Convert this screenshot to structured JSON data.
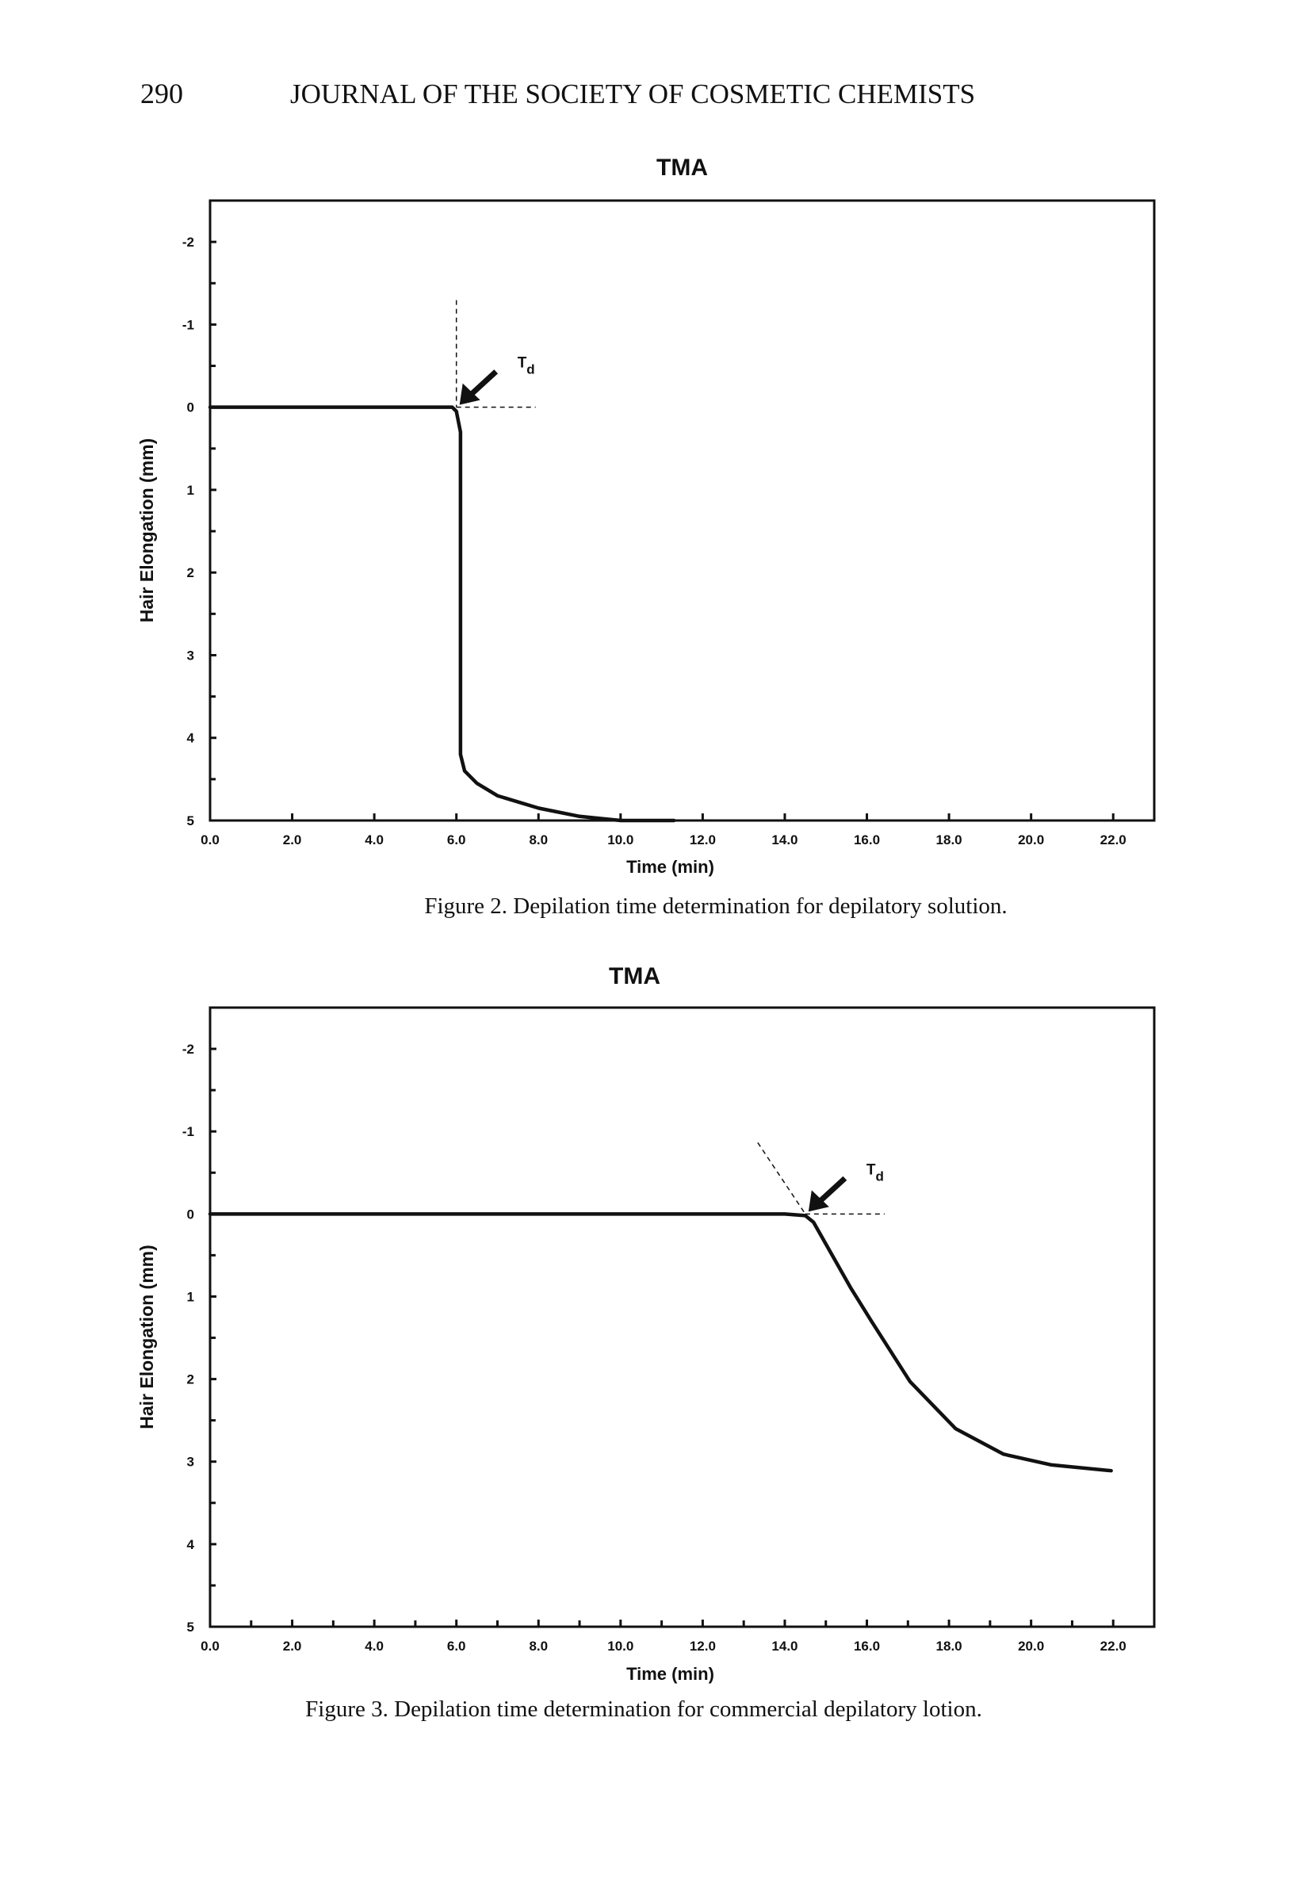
{
  "header": {
    "page": "290",
    "journal": "JOURNAL OF THE SOCIETY OF COSMETIC CHEMISTS"
  },
  "chart_data": [
    {
      "type": "line",
      "title": "TMA",
      "xlabel": "Time (min)",
      "ylabel": "Hair Elongation (mm)",
      "caption": "Figure 2. Depilation time determination for depilatory solution.",
      "x": [
        0,
        5.9,
        6.0,
        6.1,
        6.1,
        6.2,
        6.5,
        7.0,
        8.0,
        9.0,
        10.0,
        11.3
      ],
      "values": [
        0,
        0,
        0.05,
        0.3,
        4.2,
        4.4,
        4.55,
        4.7,
        4.85,
        4.95,
        5.0,
        5.0
      ],
      "color": "#111111",
      "xlim": [
        0,
        23
      ],
      "ylim": [
        -2.5,
        5
      ],
      "y_inverted": true,
      "xticks": [
        {
          "value": 0,
          "label": "0.0"
        },
        {
          "value": 2,
          "label": "2.0"
        },
        {
          "value": 4,
          "label": "4.0"
        },
        {
          "value": 6,
          "label": "6.0"
        },
        {
          "value": 8,
          "label": "8.0"
        },
        {
          "value": 10,
          "label": "10.0"
        },
        {
          "value": 12,
          "label": "12.0"
        },
        {
          "value": 14,
          "label": "14.0"
        },
        {
          "value": 16,
          "label": "16.0"
        },
        {
          "value": 18,
          "label": "18.0"
        },
        {
          "value": 20,
          "label": "20.0"
        },
        {
          "value": 22,
          "label": "22.0"
        }
      ],
      "yticks": [
        -2,
        -1,
        0,
        1,
        2,
        3,
        4,
        5
      ],
      "yminorticks": [
        -1.5,
        -0.5,
        0.5,
        1.5,
        2.5,
        3.5,
        4.5
      ],
      "annotation": {
        "text": "T",
        "subscript": "d",
        "x": 6.0,
        "y": 0
      }
    },
    {
      "type": "line",
      "title": "TMA",
      "xlabel": "Time (min)",
      "ylabel": "Hair Elongation (mm)",
      "caption": "Figure 3. Depilation time determination for commercial depilatory lotion.",
      "x": [
        0,
        14.0,
        14.5,
        14.7,
        15.6,
        16.1,
        17.05,
        18.16,
        19.33,
        20.5,
        21.95
      ],
      "values": [
        0,
        0,
        0.02,
        0.1,
        0.89,
        1.29,
        2.03,
        2.6,
        2.91,
        3.04,
        3.11
      ],
      "color": "#111111",
      "xlim": [
        0,
        23
      ],
      "ylim": [
        -2.5,
        5
      ],
      "y_inverted": true,
      "xticks": [
        {
          "value": 0,
          "label": "0.0"
        },
        {
          "value": 2,
          "label": "2.0"
        },
        {
          "value": 4,
          "label": "4.0"
        },
        {
          "value": 6,
          "label": "6.0"
        },
        {
          "value": 8,
          "label": "8.0"
        },
        {
          "value": 10,
          "label": "10.0"
        },
        {
          "value": 12,
          "label": "12.0"
        },
        {
          "value": 14,
          "label": "14.0"
        },
        {
          "value": 16,
          "label": "16.0"
        },
        {
          "value": 18,
          "label": "18.0"
        },
        {
          "value": 20,
          "label": "20.0"
        },
        {
          "value": 22,
          "label": "22.0"
        }
      ],
      "xminorticks": [
        1,
        3,
        5,
        7,
        9,
        11,
        13,
        15,
        17,
        19,
        21
      ],
      "yticks": [
        -2,
        -1,
        0,
        1,
        2,
        3,
        4,
        5
      ],
      "yminorticks": [
        -1.5,
        -0.5,
        0.5,
        1.5,
        2.5,
        3.5,
        4.5
      ],
      "annotation": {
        "text": "T",
        "subscript": "d",
        "x": 14.5,
        "y": 0
      }
    }
  ]
}
